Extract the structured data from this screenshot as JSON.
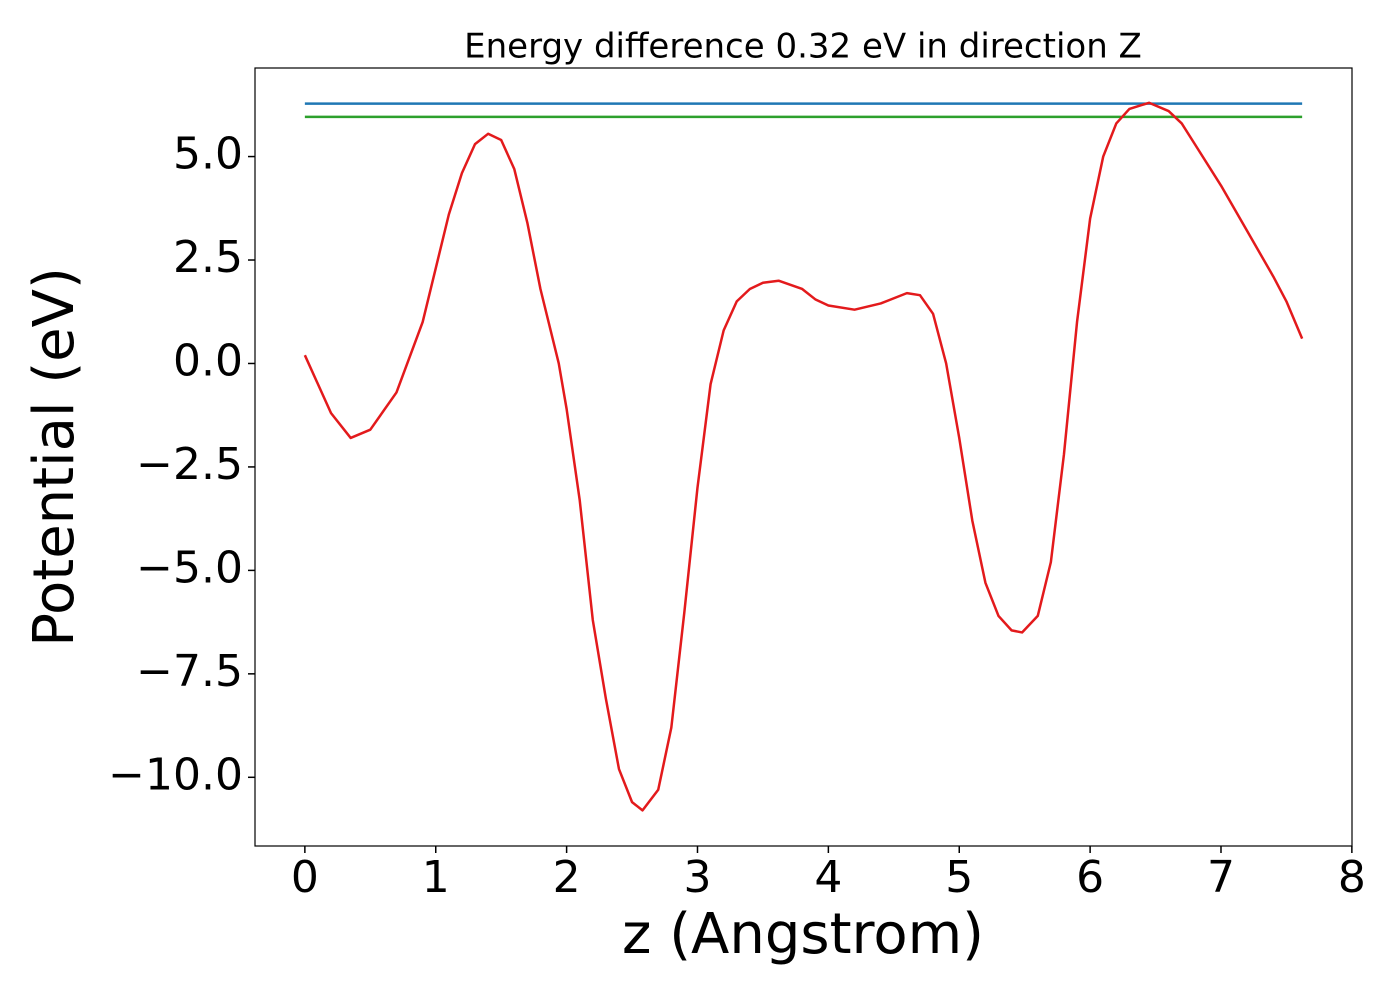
{
  "chart_data": {
    "type": "line",
    "title": "Energy difference 0.32 eV in direction Z",
    "xlabel": "z (Angstrom)",
    "ylabel": "Potential (eV)",
    "xlim": [
      -0.381,
      8.001
    ],
    "ylim": [
      -11.66,
      7.14
    ],
    "xticks": [
      0,
      1,
      2,
      3,
      4,
      5,
      6,
      7,
      8
    ],
    "yticks": [
      {
        "value": 5,
        "label": "5.0"
      },
      2.5,
      {
        "value": 0,
        "label": "0.0"
      },
      {
        "value": -2.5,
        "label": "−2.5"
      },
      {
        "value": -5,
        "label": "−5.0"
      },
      {
        "value": -7.5,
        "label": "−7.5"
      },
      {
        "value": -10,
        "label": "−10.0"
      }
    ],
    "series": [
      {
        "color": "#1f77b4",
        "x": [
          0,
          7.62
        ],
        "values": [
          6.28,
          6.28
        ]
      },
      {
        "color": "#2ca02c",
        "x": [
          0,
          7.62
        ],
        "values": [
          5.96,
          5.96
        ]
      },
      {
        "color": "#e31a1c",
        "x": [
          0,
          0.1,
          0.2,
          0.35,
          0.5,
          0.7,
          0.9,
          1.0,
          1.1,
          1.2,
          1.3,
          1.4,
          1.5,
          1.6,
          1.7,
          1.8,
          1.94,
          2.0,
          2.1,
          2.2,
          2.3,
          2.4,
          2.5,
          2.58,
          2.7,
          2.8,
          2.9,
          3.0,
          3.1,
          3.2,
          3.3,
          3.4,
          3.5,
          3.62,
          3.8,
          3.9,
          4.0,
          4.2,
          4.4,
          4.6,
          4.7,
          4.8,
          4.9,
          5.0,
          5.1,
          5.2,
          5.3,
          5.4,
          5.48,
          5.6,
          5.7,
          5.8,
          5.9,
          6.0,
          6.1,
          6.2,
          6.3,
          6.45,
          6.6,
          6.7,
          6.8,
          7.0,
          7.2,
          7.4,
          7.5,
          7.62
        ],
        "values": [
          0.2,
          -0.5,
          -1.2,
          -1.8,
          -1.6,
          -0.7,
          1.0,
          2.3,
          3.6,
          4.6,
          5.3,
          5.55,
          5.4,
          4.7,
          3.4,
          1.8,
          0.0,
          -1.1,
          -3.3,
          -6.2,
          -8.1,
          -9.8,
          -10.6,
          -10.8,
          -10.3,
          -8.8,
          -6.0,
          -3.0,
          -0.5,
          0.8,
          1.5,
          1.8,
          1.95,
          2.0,
          1.8,
          1.55,
          1.4,
          1.3,
          1.45,
          1.7,
          1.65,
          1.2,
          0.0,
          -1.8,
          -3.8,
          -5.3,
          -6.1,
          -6.45,
          -6.5,
          -6.1,
          -4.8,
          -2.2,
          1.0,
          3.5,
          5.0,
          5.8,
          6.15,
          6.3,
          6.1,
          5.8,
          5.3,
          4.3,
          3.2,
          2.1,
          1.5,
          0.6
        ]
      }
    ]
  }
}
